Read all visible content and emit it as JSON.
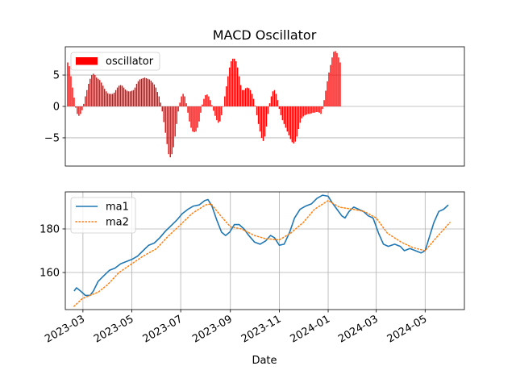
{
  "chart_data": [
    {
      "type": "bar",
      "title": "MACD Oscillator",
      "legend": {
        "placement": "top-left",
        "entries": [
          "oscillator"
        ]
      },
      "grid": {
        "x": false,
        "y": true
      },
      "xlim": [
        "2023-02-07",
        "2024-06-19"
      ],
      "ylim": [
        -9.5,
        9.5
      ],
      "yticks": [
        5,
        0,
        -5
      ],
      "ytick_labels": [
        "5",
        "0",
        "−5"
      ],
      "bar_color": "#ff0000",
      "series": [
        {
          "name": "oscillator",
          "x_start": "2023-02-10",
          "x_step_days": 2,
          "values": [
            7.0,
            6.4,
            4.8,
            3.0,
            1.4,
            -0.2,
            -1.2,
            -1.5,
            -1.2,
            -0.6,
            0.4,
            1.6,
            2.6,
            3.6,
            4.4,
            5.0,
            5.2,
            5.0,
            4.6,
            4.4,
            4.2,
            3.8,
            3.3,
            2.8,
            2.4,
            2.1,
            2.0,
            2.0,
            2.0,
            2.2,
            2.6,
            3.0,
            3.3,
            3.4,
            3.3,
            3.0,
            2.7,
            2.5,
            2.4,
            2.4,
            2.5,
            2.6,
            3.0,
            3.6,
            4.0,
            4.3,
            4.4,
            4.5,
            4.6,
            4.5,
            4.4,
            4.3,
            4.1,
            3.8,
            3.5,
            3.0,
            2.3,
            1.6,
            0.6,
            -0.8,
            -2.5,
            -4.2,
            -6.0,
            -7.6,
            -8.1,
            -7.6,
            -6.5,
            -4.8,
            -2.8,
            -0.8,
            0.6,
            1.6,
            2.0,
            1.6,
            0.5,
            -1.0,
            -2.4,
            -3.4,
            -4.0,
            -4.1,
            -4.0,
            -3.4,
            -2.4,
            -1.0,
            0.3,
            1.2,
            1.8,
            1.9,
            1.6,
            1.0,
            0.2,
            -0.7,
            -1.5,
            -2.2,
            -2.6,
            -2.4,
            -1.4,
            0.0,
            1.6,
            3.2,
            4.8,
            6.2,
            7.2,
            7.6,
            7.6,
            7.2,
            6.2,
            4.8,
            3.4,
            2.6,
            2.6,
            2.9,
            3.0,
            2.9,
            2.6,
            2.0,
            1.2,
            0.1,
            -1.4,
            -2.8,
            -4.0,
            -5.0,
            -5.5,
            -4.8,
            -3.2,
            -1.2,
            0.5,
            1.6,
            2.4,
            2.6,
            2.0,
            1.0,
            -0.4,
            -1.4,
            -2.2,
            -2.8,
            -3.4,
            -4.0,
            -4.6,
            -5.2,
            -5.7,
            -5.9,
            -5.6,
            -4.8,
            -3.6,
            -2.6,
            -1.9,
            -1.6,
            -1.4,
            -1.3,
            -1.2,
            -1.2,
            -1.1,
            -1.0,
            -1.0,
            -0.9,
            -0.9,
            -1.0,
            -1.2,
            -0.4,
            1.0,
            2.5,
            4.0,
            5.4,
            6.6,
            7.8,
            8.7,
            8.8,
            8.5,
            7.8,
            7.0
          ]
        }
      ]
    },
    {
      "type": "line",
      "xlabel": "Date",
      "legend": {
        "placement": "top-left",
        "entries": [
          "ma1",
          "ma2"
        ]
      },
      "grid": {
        "x": true,
        "y": true
      },
      "xlim": [
        "2023-02-07",
        "2024-06-19"
      ],
      "ylim": [
        143,
        197
      ],
      "yticks": [
        160,
        180
      ],
      "ytick_labels": [
        "160",
        "180"
      ],
      "xticks": [
        "2023-03-01",
        "2023-05-01",
        "2023-07-01",
        "2023-09-01",
        "2023-11-01",
        "2024-01-01",
        "2024-03-01",
        "2024-05-01"
      ],
      "xtick_labels": [
        "2023-03",
        "2023-05",
        "2023-07",
        "2023-09",
        "2023-11",
        "2024-01",
        "2024-03",
        "2024-05"
      ],
      "series": [
        {
          "name": "ma1",
          "color": "#1f77b4",
          "style": "solid",
          "points": [
            [
              "2023-02-18",
              151.5
            ],
            [
              "2023-02-21",
              153
            ],
            [
              "2023-02-26",
              151.5
            ],
            [
              "2023-03-04",
              149.5
            ],
            [
              "2023-03-10",
              149.5
            ],
            [
              "2023-03-14",
              151.5
            ],
            [
              "2023-03-20",
              156
            ],
            [
              "2023-03-27",
              158.5
            ],
            [
              "2023-04-03",
              161
            ],
            [
              "2023-04-10",
              162
            ],
            [
              "2023-04-17",
              164
            ],
            [
              "2023-04-24",
              165
            ],
            [
              "2023-05-01",
              166
            ],
            [
              "2023-05-08",
              167.5
            ],
            [
              "2023-05-15",
              170
            ],
            [
              "2023-05-22",
              172.5
            ],
            [
              "2023-05-29",
              173.5
            ],
            [
              "2023-06-05",
              176
            ],
            [
              "2023-06-12",
              179
            ],
            [
              "2023-06-19",
              181.5
            ],
            [
              "2023-06-26",
              184
            ],
            [
              "2023-07-03",
              187
            ],
            [
              "2023-07-10",
              189
            ],
            [
              "2023-07-17",
              190.5
            ],
            [
              "2023-07-24",
              191
            ],
            [
              "2023-07-31",
              193
            ],
            [
              "2023-08-04",
              193.5
            ],
            [
              "2023-08-09",
              190.5
            ],
            [
              "2023-08-15",
              184
            ],
            [
              "2023-08-21",
              178.5
            ],
            [
              "2023-08-26",
              177
            ],
            [
              "2023-08-31",
              178.5
            ],
            [
              "2023-09-06",
              182
            ],
            [
              "2023-09-12",
              182
            ],
            [
              "2023-09-18",
              180
            ],
            [
              "2023-09-24",
              177
            ],
            [
              "2023-10-01",
              174
            ],
            [
              "2023-10-08",
              173
            ],
            [
              "2023-10-15",
              174.5
            ],
            [
              "2023-10-21",
              177
            ],
            [
              "2023-10-26",
              176
            ],
            [
              "2023-11-01",
              172.5
            ],
            [
              "2023-11-07",
              173
            ],
            [
              "2023-11-14",
              178.5
            ],
            [
              "2023-11-20",
              185
            ],
            [
              "2023-11-27",
              189
            ],
            [
              "2023-12-04",
              190.5
            ],
            [
              "2023-12-11",
              191.5
            ],
            [
              "2023-12-18",
              194
            ],
            [
              "2023-12-25",
              195.5
            ],
            [
              "2024-01-01",
              195
            ],
            [
              "2024-01-06",
              192
            ],
            [
              "2024-01-12",
              189
            ],
            [
              "2024-01-18",
              186
            ],
            [
              "2024-01-22",
              185
            ],
            [
              "2024-01-27",
              188
            ],
            [
              "2024-02-02",
              190
            ],
            [
              "2024-02-08",
              189
            ],
            [
              "2024-02-14",
              188
            ],
            [
              "2024-02-20",
              186
            ],
            [
              "2024-02-26",
              185
            ],
            [
              "2024-03-04",
              178
            ],
            [
              "2024-03-10",
              173
            ],
            [
              "2024-03-16",
              172
            ],
            [
              "2024-03-24",
              173
            ],
            [
              "2024-03-31",
              172
            ],
            [
              "2024-04-05",
              170
            ],
            [
              "2024-04-12",
              171
            ],
            [
              "2024-04-19",
              170
            ],
            [
              "2024-04-26",
              169
            ],
            [
              "2024-05-01",
              170
            ],
            [
              "2024-05-06",
              176
            ],
            [
              "2024-05-12",
              183
            ],
            [
              "2024-05-18",
              188
            ],
            [
              "2024-05-24",
              189
            ],
            [
              "2024-05-30",
              191
            ]
          ]
        },
        {
          "name": "ma2",
          "color": "#ff7f0e",
          "style": "dotted",
          "points": [
            [
              "2023-02-18",
              144.5
            ],
            [
              "2023-02-28",
              148
            ],
            [
              "2023-03-10",
              149.5
            ],
            [
              "2023-03-20",
              151
            ],
            [
              "2023-04-01",
              154.5
            ],
            [
              "2023-04-15",
              160
            ],
            [
              "2023-05-01",
              164
            ],
            [
              "2023-05-15",
              167.5
            ],
            [
              "2023-06-01",
              171
            ],
            [
              "2023-06-15",
              176.5
            ],
            [
              "2023-07-01",
              182
            ],
            [
              "2023-07-15",
              187
            ],
            [
              "2023-08-01",
              191
            ],
            [
              "2023-08-08",
              191.5
            ],
            [
              "2023-08-20",
              186
            ],
            [
              "2023-09-01",
              181
            ],
            [
              "2023-09-15",
              180
            ],
            [
              "2023-10-01",
              177
            ],
            [
              "2023-10-15",
              175.5
            ],
            [
              "2023-11-01",
              175
            ],
            [
              "2023-11-15",
              178
            ],
            [
              "2023-12-01",
              183
            ],
            [
              "2023-12-15",
              189
            ],
            [
              "2024-01-01",
              193
            ],
            [
              "2024-01-15",
              190
            ],
            [
              "2024-02-01",
              189
            ],
            [
              "2024-02-15",
              188
            ],
            [
              "2024-03-01",
              185
            ],
            [
              "2024-03-15",
              178
            ],
            [
              "2024-04-01",
              174
            ],
            [
              "2024-04-15",
              171.5
            ],
            [
              "2024-05-01",
              170
            ],
            [
              "2024-05-15",
              176
            ],
            [
              "2024-06-01",
              183
            ]
          ]
        }
      ]
    }
  ]
}
